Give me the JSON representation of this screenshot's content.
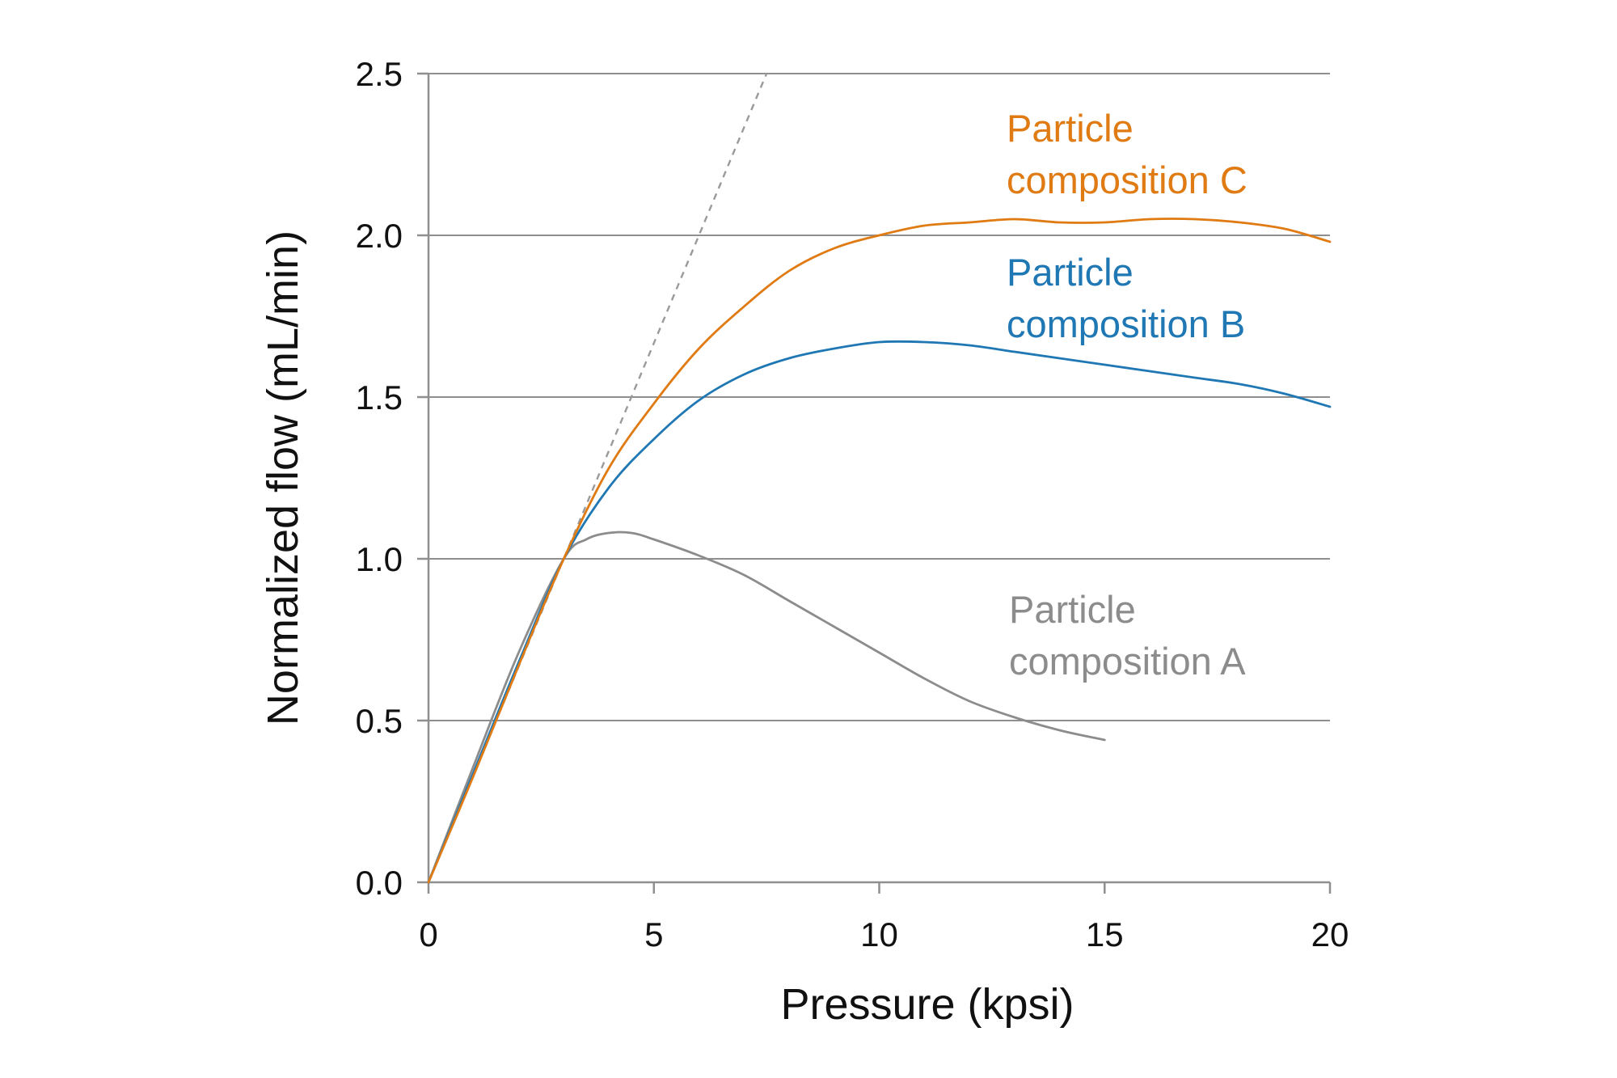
{
  "chart_data": {
    "type": "line",
    "title": "",
    "xlabel": "Pressure (kpsi)",
    "ylabel": "Normalized flow (mL/min)",
    "xlim": [
      0,
      20
    ],
    "ylim": [
      0,
      2.5
    ],
    "xticks": [
      "0",
      "5",
      "10",
      "15",
      "20"
    ],
    "yticks": [
      "0.0",
      "0.5",
      "1.0",
      "1.5",
      "2.0",
      "2.5"
    ],
    "grid": "horizontal",
    "reference_line": {
      "name": "linear reference",
      "style": "dashed",
      "color": "#9a9a9a",
      "points": [
        [
          0,
          0
        ],
        [
          7.5,
          2.5
        ]
      ]
    },
    "series": [
      {
        "name": "Particle composition C",
        "label_lines": [
          "Particle",
          "composition C"
        ],
        "color": "#E07B14",
        "points": [
          [
            0,
            0
          ],
          [
            1,
            0.33
          ],
          [
            2,
            0.67
          ],
          [
            3,
            1.0
          ],
          [
            4,
            1.28
          ],
          [
            5,
            1.48
          ],
          [
            6,
            1.65
          ],
          [
            7,
            1.78
          ],
          [
            8,
            1.89
          ],
          [
            9,
            1.96
          ],
          [
            10,
            2.0
          ],
          [
            11,
            2.03
          ],
          [
            12,
            2.04
          ],
          [
            13,
            2.05
          ],
          [
            14,
            2.04
          ],
          [
            15,
            2.04
          ],
          [
            16,
            2.05
          ],
          [
            17,
            2.05
          ],
          [
            18,
            2.04
          ],
          [
            19,
            2.02
          ],
          [
            20,
            1.98
          ]
        ]
      },
      {
        "name": "Particle composition B",
        "label_lines": [
          "Particle",
          "composition B"
        ],
        "color": "#1F78B4",
        "points": [
          [
            0,
            0
          ],
          [
            1,
            0.34
          ],
          [
            2,
            0.68
          ],
          [
            3,
            1.0
          ],
          [
            4,
            1.22
          ],
          [
            5,
            1.37
          ],
          [
            6,
            1.49
          ],
          [
            7,
            1.57
          ],
          [
            8,
            1.62
          ],
          [
            9,
            1.65
          ],
          [
            10,
            1.67
          ],
          [
            11,
            1.67
          ],
          [
            12,
            1.66
          ],
          [
            13,
            1.64
          ],
          [
            14,
            1.62
          ],
          [
            15,
            1.6
          ],
          [
            16,
            1.58
          ],
          [
            17,
            1.56
          ],
          [
            18,
            1.54
          ],
          [
            19,
            1.51
          ],
          [
            20,
            1.47
          ]
        ]
      },
      {
        "name": "Particle composition A",
        "label_lines": [
          "Particle",
          "composition A"
        ],
        "color": "#8C8C8C",
        "points": [
          [
            0,
            0
          ],
          [
            1,
            0.36
          ],
          [
            2,
            0.71
          ],
          [
            3,
            1.0
          ],
          [
            3.5,
            1.06
          ],
          [
            4,
            1.08
          ],
          [
            4.5,
            1.08
          ],
          [
            5,
            1.06
          ],
          [
            6,
            1.01
          ],
          [
            7,
            0.95
          ],
          [
            8,
            0.87
          ],
          [
            9,
            0.79
          ],
          [
            10,
            0.71
          ],
          [
            11,
            0.63
          ],
          [
            12,
            0.56
          ],
          [
            13,
            0.51
          ],
          [
            14,
            0.47
          ],
          [
            15,
            0.44
          ]
        ]
      }
    ]
  }
}
